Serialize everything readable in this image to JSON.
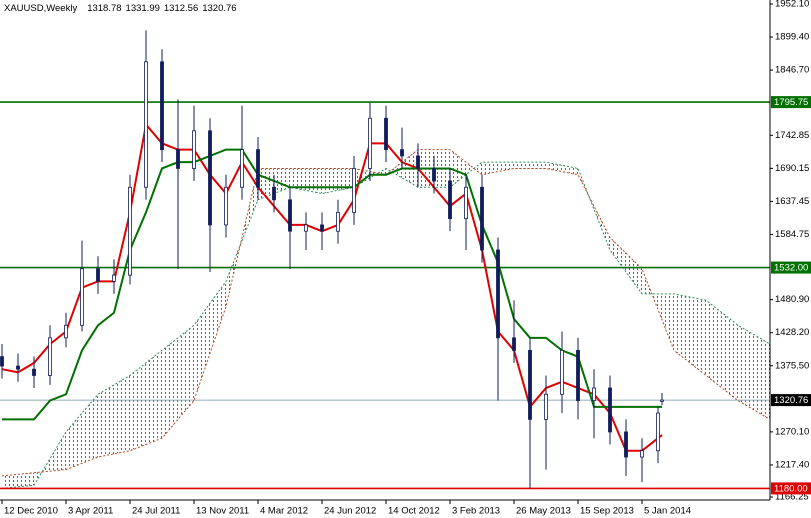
{
  "chart_data": {
    "type": "candlestick",
    "title": "XAUUSD,Weekly",
    "x": [
      0,
      4,
      8,
      12,
      16,
      20,
      24,
      28,
      32,
      36,
      40,
      44,
      48,
      52,
      56,
      60,
      64,
      68,
      72,
      76,
      80,
      84,
      88,
      92,
      96,
      100,
      104,
      108,
      112,
      116,
      120,
      124,
      128,
      132,
      136,
      140,
      144,
      148,
      152,
      156,
      160,
      164,
      165
    ],
    "open": [
      1390,
      1375,
      1370,
      1360,
      1420,
      1440,
      1530,
      1510,
      1520,
      1660,
      1860,
      1720,
      1690,
      1750,
      1600,
      1660,
      1720,
      1660,
      1640,
      1590,
      1600,
      1590,
      1620,
      1690,
      1770,
      1720,
      1710,
      1690,
      1670,
      1610,
      1660,
      1560,
      1420,
      1400,
      1290,
      1330,
      1400,
      1320,
      1340,
      1270,
      1230,
      1240,
      1318.78
    ],
    "high": [
      1410,
      1395,
      1390,
      1440,
      1460,
      1575,
      1550,
      1545,
      1680,
      1910,
      1880,
      1800,
      1790,
      1770,
      1680,
      1790,
      1740,
      1680,
      1660,
      1620,
      1620,
      1640,
      1710,
      1795,
      1790,
      1755,
      1730,
      1710,
      1690,
      1680,
      1680,
      1580,
      1480,
      1420,
      1360,
      1430,
      1420,
      1370,
      1360,
      1290,
      1260,
      1310,
      1331.99
    ],
    "low": [
      1355,
      1350,
      1340,
      1345,
      1405,
      1430,
      1490,
      1490,
      1505,
      1640,
      1700,
      1530,
      1670,
      1525,
      1580,
      1640,
      1640,
      1620,
      1530,
      1560,
      1560,
      1570,
      1600,
      1670,
      1700,
      1690,
      1660,
      1650,
      1590,
      1560,
      1540,
      1320,
      1380,
      1180,
      1210,
      1300,
      1290,
      1260,
      1250,
      1200,
      1190,
      1220,
      1312.56
    ],
    "close": [
      1375,
      1370,
      1360,
      1420,
      1440,
      1530,
      1510,
      1520,
      1660,
      1860,
      1720,
      1690,
      1750,
      1600,
      1660,
      1720,
      1660,
      1640,
      1590,
      1600,
      1590,
      1620,
      1690,
      1770,
      1720,
      1710,
      1690,
      1670,
      1610,
      1660,
      1560,
      1420,
      1400,
      1290,
      1330,
      1400,
      1320,
      1340,
      1270,
      1230,
      1240,
      1300,
      1320.76
    ],
    "candle_color": "#101c5c",
    "lines": [
      {
        "color": "#e00000",
        "values": [
          1370,
          1365,
          1380,
          1410,
          1430,
          1500,
          1510,
          1510,
          1620,
          1760,
          1730,
          1720,
          1720,
          1680,
          1650,
          1700,
          1660,
          1630,
          1600,
          1600,
          1590,
          1600,
          1640,
          1730,
          1730,
          1700,
          1690,
          1660,
          1630,
          1650,
          1560,
          1430,
          1400,
          1310,
          1340,
          1350,
          1340,
          1330,
          1300,
          1240,
          1240,
          1260,
          1265
        ]
      },
      {
        "color": "#007000",
        "values": [
          1290,
          1290,
          1290,
          1320,
          1330,
          1400,
          1440,
          1460,
          1560,
          1620,
          1690,
          1700,
          1700,
          1710,
          1720,
          1720,
          1680,
          1670,
          1660,
          1660,
          1660,
          1660,
          1660,
          1680,
          1680,
          1690,
          1690,
          1690,
          1690,
          1680,
          1600,
          1540,
          1450,
          1420,
          1420,
          1400,
          1390,
          1310,
          1310,
          1310,
          1310,
          1310,
          1310
        ]
      }
    ],
    "cloud": {
      "x": [
        0,
        8,
        16,
        24,
        32,
        40,
        48,
        56,
        64,
        72,
        80,
        88,
        96,
        104,
        112,
        120,
        128,
        136,
        144,
        152,
        160,
        168,
        176,
        184,
        192
      ],
      "span_a": {
        "color": "#2e8b57",
        "values": [
          1180,
          1185,
          1270,
          1330,
          1360,
          1400,
          1440,
          1510,
          1640,
          1660,
          1650,
          1660,
          1690,
          1660,
          1660,
          1700,
          1700,
          1700,
          1690,
          1560,
          1490,
          1490,
          1480,
          1440,
          1410
        ]
      },
      "span_b": {
        "color": "#b5471c",
        "values": [
          1200,
          1205,
          1210,
          1230,
          1240,
          1260,
          1320,
          1470,
          1690,
          1690,
          1690,
          1690,
          1680,
          1720,
          1720,
          1680,
          1690,
          1690,
          1680,
          1580,
          1530,
          1400,
          1360,
          1320,
          1290
        ]
      }
    },
    "levels": [
      {
        "value": 1795.75,
        "label": "1795.75",
        "color": "#007000"
      },
      {
        "value": 1532,
        "label": "1532.00",
        "color": "#007000"
      },
      {
        "value": 1320.76,
        "label": "1320.76",
        "color": "#000000"
      },
      {
        "value": 1180,
        "label": "1180.00",
        "color": "#e00000"
      }
    ],
    "xlim": [
      -0.5,
      192
    ],
    "ylim": [
      1161.5,
      1958.5
    ],
    "xticks": [
      {
        "value": 0,
        "label": "12 Dec 2010"
      },
      {
        "value": 16,
        "label": "3 Apr 2011"
      },
      {
        "value": 32,
        "label": "24 Jul 2011"
      },
      {
        "value": 48,
        "label": "13 Nov 2011"
      },
      {
        "value": 64,
        "label": "4 Mar 2012"
      },
      {
        "value": 80,
        "label": "24 Jun 2012"
      },
      {
        "value": 96,
        "label": "14 Oct 2012"
      },
      {
        "value": 112,
        "label": "3 Feb 2013"
      },
      {
        "value": 128,
        "label": "26 May 2013"
      },
      {
        "value": 144,
        "label": "15 Sep 2013"
      },
      {
        "value": 160,
        "label": "5 Jan 2014"
      }
    ],
    "yticks": [
      {
        "value": 1952.1,
        "label": "1952.10"
      },
      {
        "value": 1899.4,
        "label": "1899.40"
      },
      {
        "value": 1846.7,
        "label": "1846.70"
      },
      1742.85,
      1690.15,
      1637.45,
      1584.75,
      {
        "value": 1480.9,
        "label": "1480.90"
      },
      {
        "value": 1428.2,
        "label": "1428.20"
      },
      {
        "value": 1375.5,
        "label": "1375.50"
      },
      {
        "value": 1270.1,
        "label": "1270.10"
      },
      {
        "value": 1217.4,
        "label": "1217.40"
      },
      1166.25
    ]
  }
}
